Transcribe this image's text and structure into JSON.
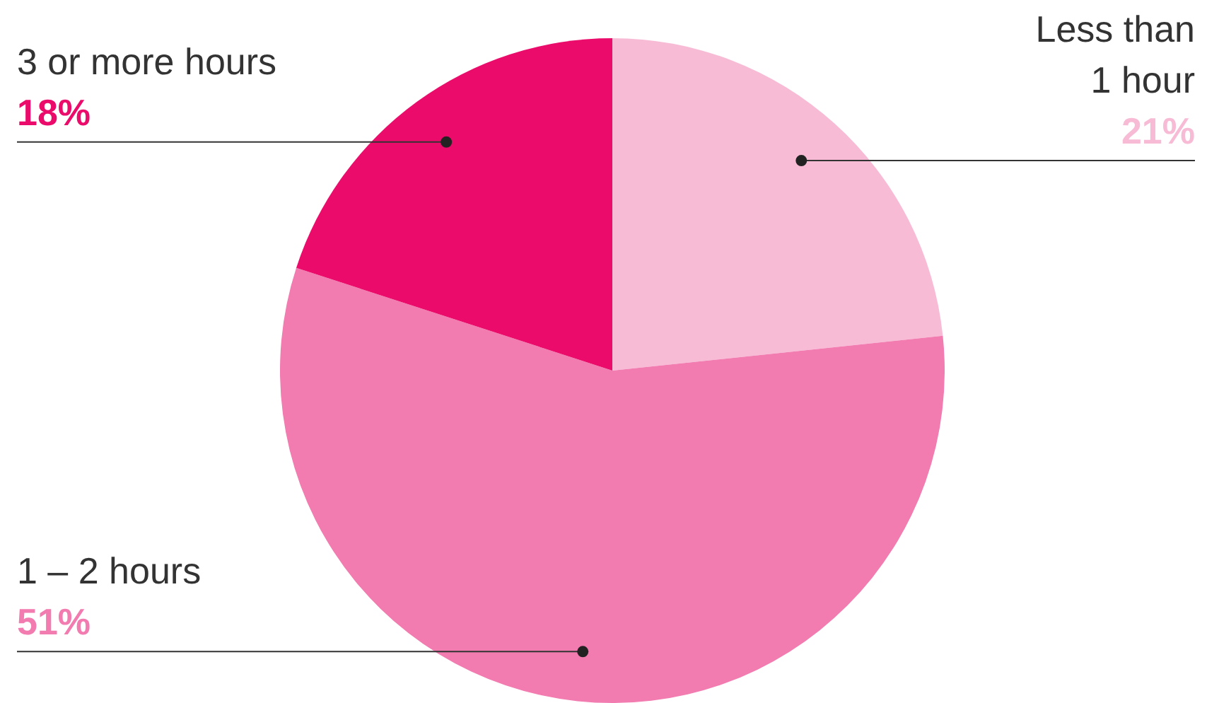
{
  "chart_data": {
    "type": "pie",
    "categories": [
      "Less than 1 hour",
      "1 – 2 hours",
      "3 or more hours"
    ],
    "values": [
      21,
      51,
      18
    ],
    "value_labels": [
      "21%",
      "51%",
      "18%"
    ],
    "colors": [
      "#f8bbd6",
      "#f27bb0",
      "#eb0b6b"
    ]
  }
}
